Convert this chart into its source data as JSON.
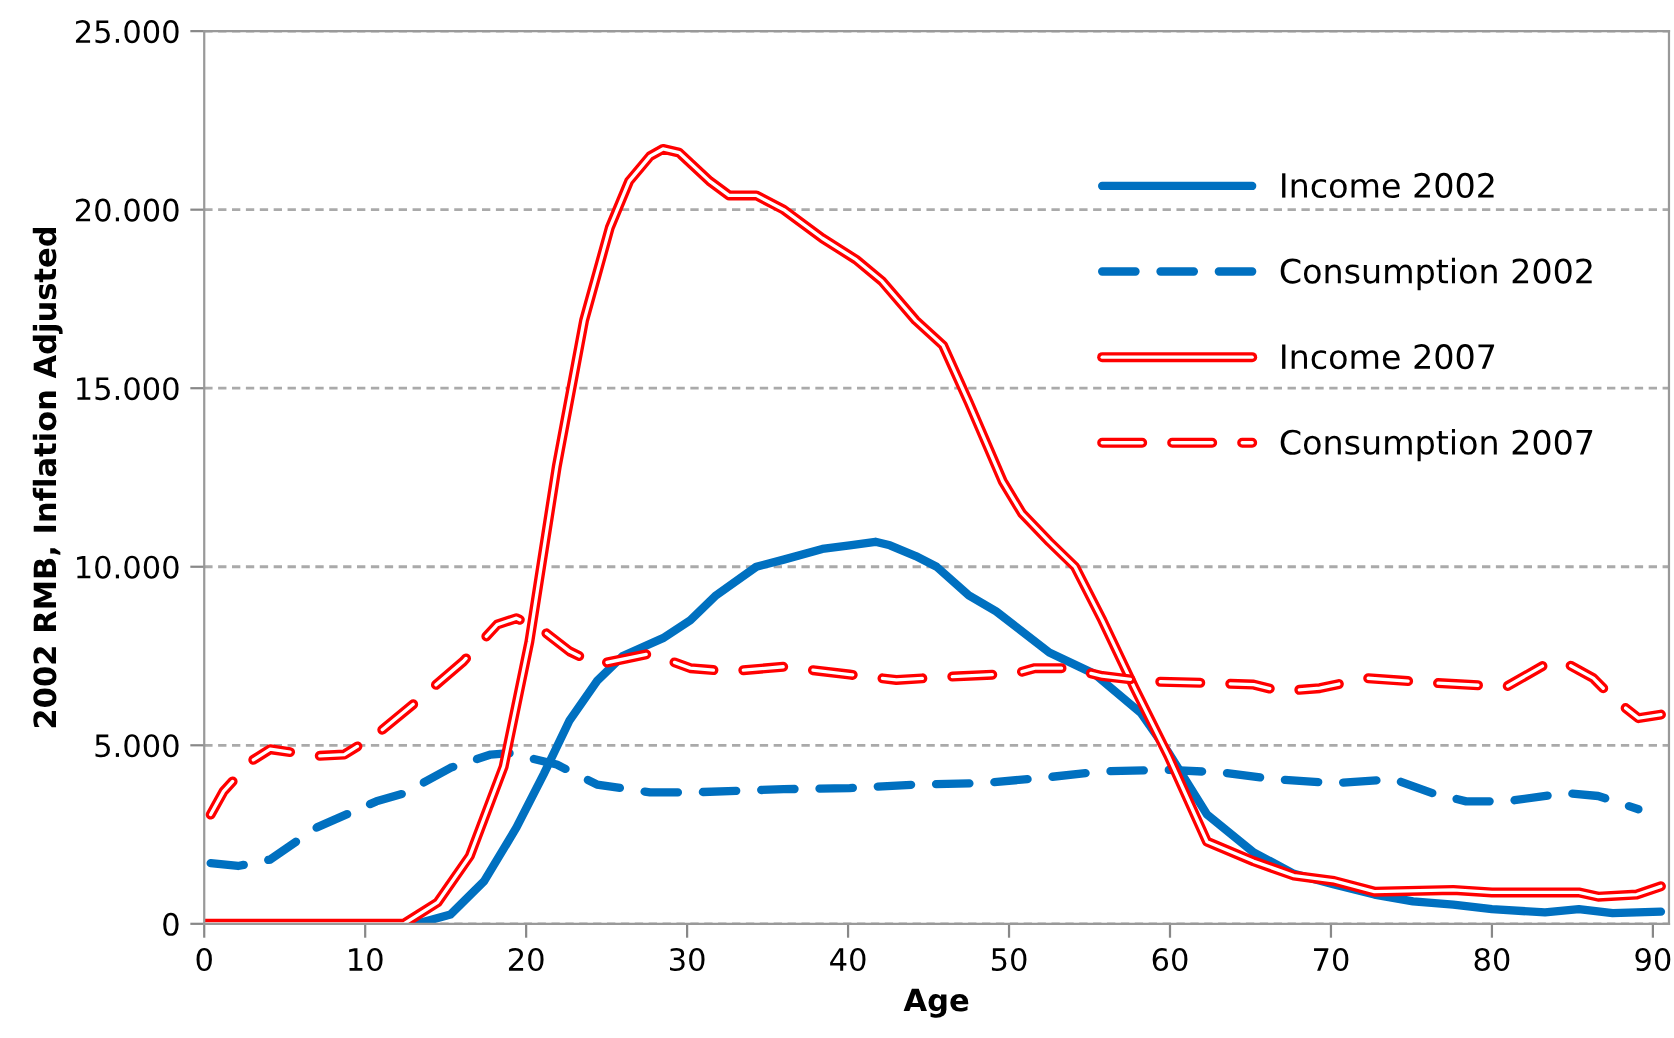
{
  "chart_data": {
    "type": "line",
    "xlabel": "Age",
    "ylabel": "2002 RMB, Inflation Adjusted",
    "xlim": [
      0,
      91
    ],
    "xticks": [
      0,
      10,
      20,
      30,
      40,
      50,
      60,
      70,
      80,
      90
    ],
    "ylim": [
      0,
      25000
    ],
    "yticks": [
      {
        "value": 0,
        "label": "0"
      },
      {
        "value": 5000,
        "label": "5.000"
      },
      {
        "value": 10000,
        "label": "10.000"
      },
      {
        "value": 15000,
        "label": "15.000"
      },
      {
        "value": 20000,
        "label": "20.000"
      },
      {
        "value": 25000,
        "label": "25.000"
      }
    ],
    "grid": "y",
    "legend": "right",
    "marker": "none",
    "series": [
      {
        "name": "Income 2002",
        "color": "#0070c0",
        "line_style": "solid",
        "x": [
          0,
          13.2,
          15.3,
          17.4,
          19.4,
          21.1,
          22.7,
          24.4,
          26,
          28.5,
          30.2,
          31.8,
          34.3,
          36,
          38.4,
          40.1,
          41.7,
          42.6,
          44.2,
          45.5,
          47.5,
          49.2,
          52.5,
          55.3,
          58.2,
          59.9,
          62.3,
          65.2,
          67.7,
          70.2,
          72.7,
          75.1,
          77.6,
          80,
          83.3,
          85.4,
          87.5,
          90.5
        ],
        "values": [
          0,
          0,
          260,
          1200,
          2700,
          4200,
          5700,
          6800,
          7500,
          8000,
          8500,
          9200,
          10000,
          10200,
          10500,
          10600,
          10700,
          10600,
          10300,
          10000,
          9200,
          8750,
          7600,
          7000,
          5900,
          4800,
          3060,
          2000,
          1400,
          1100,
          820,
          630,
          540,
          410,
          320,
          410,
          300,
          340
        ]
      },
      {
        "name": "Consumption 2002",
        "color": "#0070c0",
        "line_style": "dashed",
        "x": [
          0.4,
          2.1,
          4.1,
          7,
          10.7,
          12.4,
          15.3,
          17.8,
          19,
          21.9,
          24.4,
          27.7,
          30.2,
          36,
          40.1,
          44.2,
          48.4,
          52.1,
          55.8,
          59.9,
          63.2,
          66.5,
          70.2,
          73.9,
          76.3,
          78.4,
          80.9,
          84.6,
          86.6,
          89.1
        ],
        "values": [
          1700,
          1620,
          1800,
          2700,
          3430,
          3650,
          4370,
          4740,
          4780,
          4460,
          3900,
          3680,
          3680,
          3770,
          3800,
          3900,
          3940,
          4090,
          4270,
          4310,
          4240,
          4050,
          3940,
          4050,
          3660,
          3430,
          3430,
          3660,
          3580,
          3210
        ]
      },
      {
        "name": "Income 2007",
        "color": "#ff0000",
        "line_style": "solid",
        "x": [
          0,
          12.4,
          14.5,
          16.5,
          18.6,
          20.2,
          21.9,
          23.6,
          25.2,
          26.4,
          27.7,
          28.5,
          29.5,
          31.4,
          32.6,
          34.3,
          36,
          38.4,
          40.5,
          42.1,
          44.2,
          45.9,
          47.5,
          49.6,
          50.8,
          52.5,
          54.1,
          55.8,
          57.8,
          59.9,
          62.3,
          65.2,
          67.7,
          70.2,
          72.7,
          77.6,
          80,
          85.4,
          86.6,
          89,
          90.5
        ],
        "values": [
          0,
          0,
          600,
          1900,
          4400,
          7900,
          12800,
          16900,
          19500,
          20800,
          21500,
          21700,
          21600,
          20800,
          20400,
          20400,
          20000,
          19200,
          18600,
          18000,
          16900,
          16200,
          14600,
          12400,
          11500,
          10700,
          10000,
          8500,
          6600,
          4700,
          2300,
          1750,
          1350,
          1200,
          900,
          950,
          880,
          880,
          760,
          820,
          1050
        ]
      },
      {
        "name": "Consumption 2007",
        "color": "#ff0000",
        "line_style": "dashed",
        "x": [
          0.4,
          1.2,
          2.9,
          4.1,
          7,
          8.7,
          10.7,
          13.2,
          16.1,
          18.2,
          19.4,
          21.1,
          22.7,
          24.4,
          27.7,
          30.2,
          32.6,
          36,
          40.1,
          43,
          46.3,
          50.4,
          51.6,
          53.7,
          55.8,
          58.6,
          61.9,
          65.2,
          66.9,
          69.3,
          72.2,
          76.3,
          80.9,
          83.3,
          84.4,
          86.3,
          87.5,
          89.1,
          90.5
        ],
        "values": [
          3060,
          3710,
          4550,
          4890,
          4700,
          4740,
          5300,
          6230,
          7350,
          8380,
          8560,
          8190,
          7630,
          7260,
          7570,
          7160,
          7070,
          7200,
          6980,
          6830,
          6920,
          7010,
          7160,
          7160,
          6940,
          6790,
          6750,
          6700,
          6510,
          6600,
          6880,
          6750,
          6640,
          7260,
          7350,
          6880,
          6330,
          5760,
          5860
        ]
      }
    ]
  }
}
